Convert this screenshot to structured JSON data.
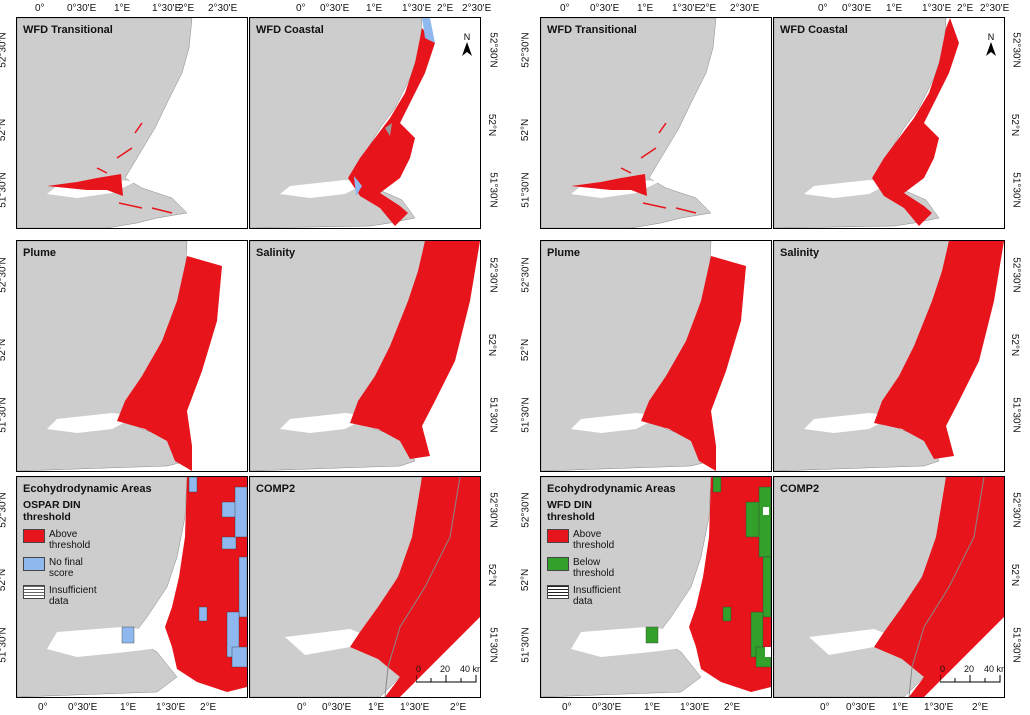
{
  "lon_ticks": [
    "0°",
    "0°30'E",
    "1°E",
    "1°30'E",
    "2°E",
    "2°30'E"
  ],
  "lon_ticks_bottom": [
    "0°",
    "0°30'E",
    "1°E",
    "1°30'E",
    "2°E"
  ],
  "lat_ticks": [
    "52°30'N",
    "52°N",
    "51°30'N"
  ],
  "panels": {
    "wfd_transitional": "WFD Transitional",
    "wfd_coastal": "WFD Coastal",
    "plume": "Plume",
    "salinity": "Salinity",
    "ecohydro": "Ecohydrodynamic Areas",
    "comp2": "COMP2"
  },
  "north_label": "N",
  "scale": {
    "zero": "0",
    "mid": "20",
    "end": "40 km"
  },
  "legend_left": {
    "title_line1": "OSPAR DIN",
    "title_line2": "threshold",
    "items": [
      {
        "line1": "Above",
        "line2": "threshold",
        "color": "#e8141b"
      },
      {
        "line1": "No final",
        "line2": "score",
        "color": "#8fb9ee"
      },
      {
        "line1": "Insufficient",
        "line2": "data",
        "color": "#ffffff"
      }
    ]
  },
  "legend_right": {
    "title_line1": "WFD DIN",
    "title_line2": "threshold",
    "items": [
      {
        "line1": "Above",
        "line2": "threshold",
        "color": "#e8141b"
      },
      {
        "line1": "Below",
        "line2": "threshold",
        "color": "#33a02c"
      },
      {
        "line1": "Insufficient",
        "line2": "data",
        "color": "#ffffff"
      }
    ]
  },
  "colors": {
    "land": "#cdcdcd",
    "sea": "#ffffff",
    "red": "#e8141b",
    "blue": "#8fb9ee",
    "green": "#33a02c"
  }
}
